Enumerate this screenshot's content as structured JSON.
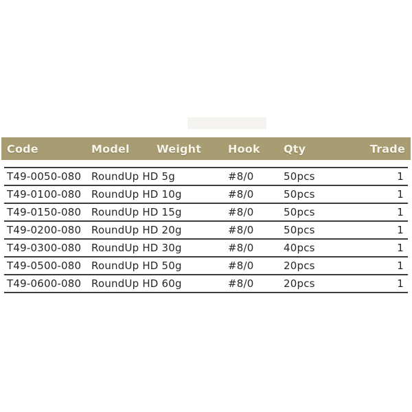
{
  "colors": {
    "header_bg": "#a89c72",
    "header_text": "#f7f4e9",
    "row_text": "#262626",
    "divider": "#3c3c3c",
    "background": "#ffffff"
  },
  "table": {
    "columns": [
      {
        "key": "code",
        "label": "Code"
      },
      {
        "key": "model",
        "label": "Model"
      },
      {
        "key": "weight",
        "label": "Weight"
      },
      {
        "key": "hook",
        "label": "Hook"
      },
      {
        "key": "qty",
        "label": "Qty"
      },
      {
        "key": "trade",
        "label": "Trade"
      }
    ],
    "rows": [
      {
        "code": "T49-0050-080",
        "model": "RoundUp HD",
        "weight": "5g",
        "hook": "#8/0",
        "qty": "50pcs",
        "trade": "1"
      },
      {
        "code": "T49-0100-080",
        "model": "RoundUp HD",
        "weight": "10g",
        "hook": "#8/0",
        "qty": "50pcs",
        "trade": "1"
      },
      {
        "code": "T49-0150-080",
        "model": "RoundUp HD",
        "weight": "15g",
        "hook": "#8/0",
        "qty": "50pcs",
        "trade": "1"
      },
      {
        "code": "T49-0200-080",
        "model": "RoundUp HD",
        "weight": "20g",
        "hook": "#8/0",
        "qty": "50pcs",
        "trade": "1"
      },
      {
        "code": "T49-0300-080",
        "model": "RoundUp HD",
        "weight": "30g",
        "hook": "#8/0",
        "qty": "40pcs",
        "trade": "1"
      },
      {
        "code": "T49-0500-080",
        "model": "RoundUp HD",
        "weight": "50g",
        "hook": "#8/0",
        "qty": "20pcs",
        "trade": "1"
      },
      {
        "code": "T49-0600-080",
        "model": "RoundUp HD",
        "weight": "60g",
        "hook": "#8/0",
        "qty": "20pcs",
        "trade": "1"
      }
    ]
  }
}
